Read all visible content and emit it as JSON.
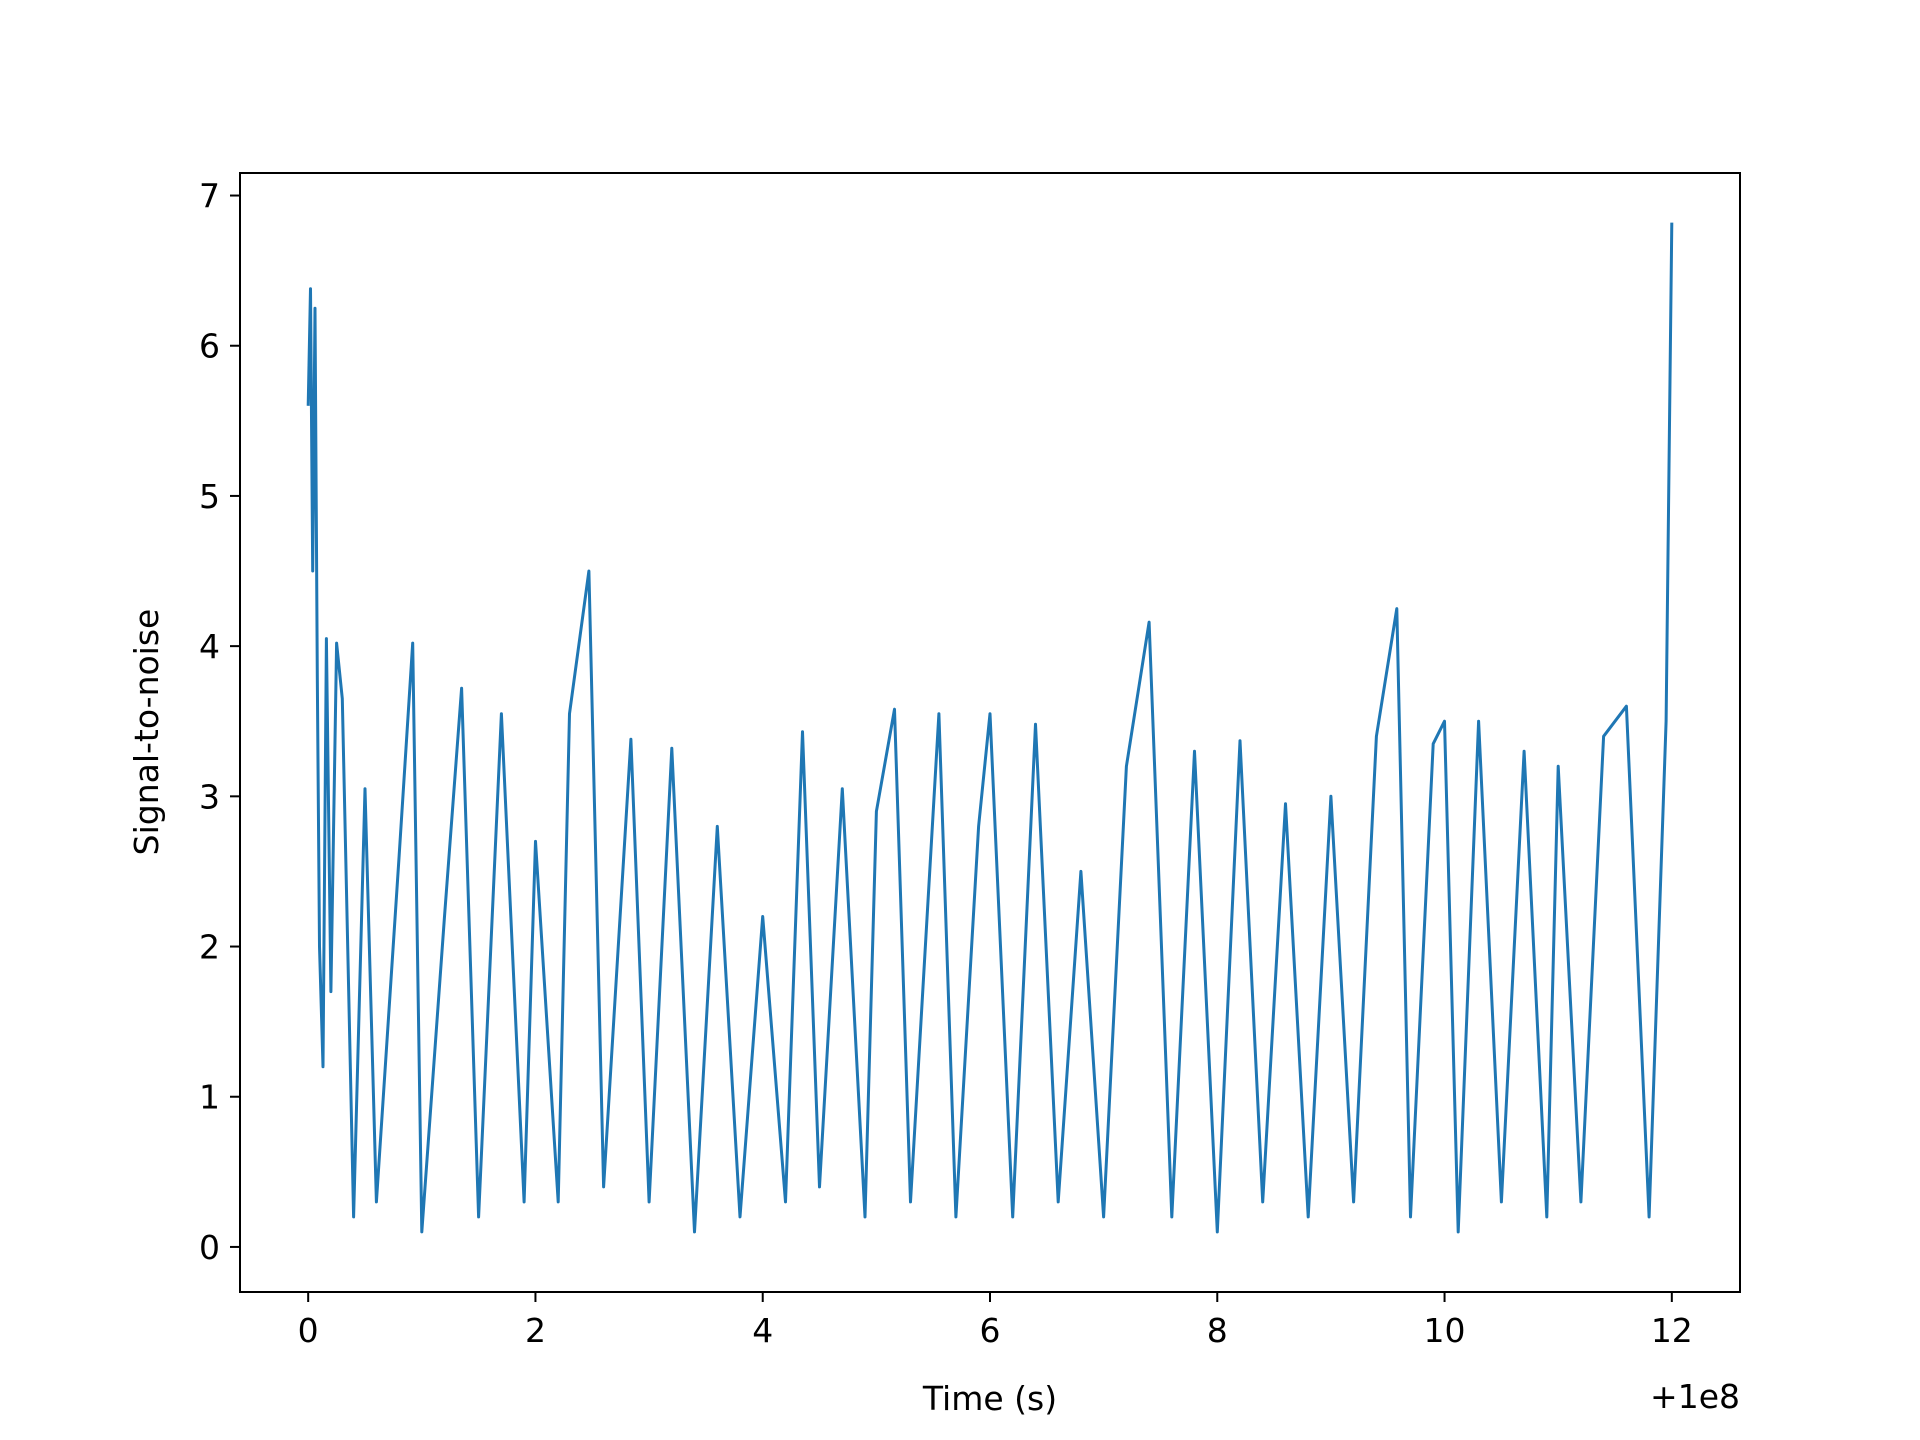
{
  "chart_data": {
    "type": "line",
    "title": "",
    "xlabel": "Time (s)",
    "ylabel": "Signal-to-noise",
    "x_offset_label": "+1e8",
    "xlim": [
      -0.6,
      12.6
    ],
    "ylim": [
      -0.3,
      7.15
    ],
    "xticks": [
      0,
      2,
      4,
      6,
      8,
      10,
      12
    ],
    "xtick_labels": [
      "0",
      "2",
      "4",
      "6",
      "8",
      "10",
      "12"
    ],
    "yticks": [
      0,
      1,
      2,
      3,
      4,
      5,
      6,
      7
    ],
    "ytick_labels": [
      "0",
      "1",
      "2",
      "3",
      "4",
      "5",
      "6",
      "7"
    ],
    "grid": false,
    "series": [
      {
        "color": "#1f77b4",
        "x": [
          0.0,
          0.02,
          0.04,
          0.06,
          0.08,
          0.1,
          0.13,
          0.16,
          0.2,
          0.25,
          0.3,
          0.4,
          0.5,
          0.6,
          0.8,
          0.92,
          1.0,
          1.2,
          1.35,
          1.5,
          1.7,
          1.9,
          2.0,
          2.2,
          2.3,
          2.47,
          2.6,
          2.84,
          3.0,
          3.2,
          3.4,
          3.6,
          3.8,
          4.0,
          4.2,
          4.35,
          4.5,
          4.7,
          4.9,
          5.0,
          5.16,
          5.3,
          5.55,
          5.7,
          5.9,
          6.0,
          6.2,
          6.4,
          6.6,
          6.8,
          7.0,
          7.2,
          7.4,
          7.6,
          7.8,
          8.0,
          8.2,
          8.4,
          8.6,
          8.8,
          9.0,
          9.2,
          9.4,
          9.58,
          9.7,
          9.9,
          10.0,
          10.12,
          10.3,
          10.5,
          10.7,
          10.9,
          11.0,
          11.2,
          11.4,
          11.6,
          11.8,
          11.95,
          12.0
        ],
        "y": [
          5.6,
          6.38,
          4.5,
          6.25,
          3.8,
          2.0,
          1.2,
          4.05,
          1.7,
          4.02,
          3.65,
          0.2,
          3.05,
          0.3,
          2.6,
          4.02,
          0.1,
          2.2,
          3.72,
          0.2,
          3.55,
          0.3,
          2.7,
          0.3,
          3.55,
          4.5,
          0.4,
          3.38,
          0.3,
          3.32,
          0.1,
          2.8,
          0.2,
          2.2,
          0.3,
          3.43,
          0.4,
          3.05,
          0.2,
          2.9,
          3.58,
          0.3,
          3.55,
          0.2,
          2.8,
          3.55,
          0.2,
          3.48,
          0.3,
          2.5,
          0.2,
          3.2,
          4.16,
          0.2,
          3.3,
          0.1,
          3.37,
          0.3,
          2.95,
          0.2,
          3.0,
          0.3,
          3.4,
          4.25,
          0.2,
          3.35,
          3.5,
          0.1,
          3.5,
          0.3,
          3.3,
          0.2,
          3.2,
          0.3,
          3.4,
          3.6,
          0.2,
          3.5,
          6.82
        ]
      }
    ]
  }
}
